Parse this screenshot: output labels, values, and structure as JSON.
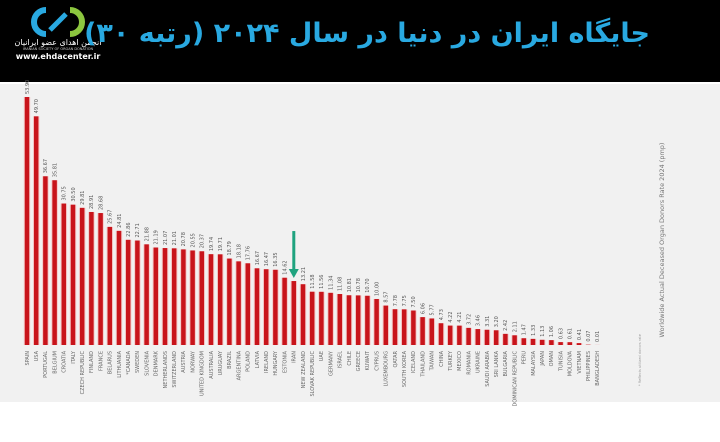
{
  "header": {
    "title": "جایگاه ایران در دنیا در سال ۲۰۲۴ (رتبه ۳۰)",
    "logo_text": "انجمن اهدای عضو ایرانیان",
    "logo_subtext": "IRANIAN SOCIETY OF ORGAN DONATION",
    "logo_url": "www.ehdacenter.ir",
    "title_color": "#29a9e1"
  },
  "chart_data": {
    "type": "bar",
    "ylabel": "Worldwide Actual Deceased Organ Donors Rate 2024 (pmp)",
    "note": "* Reflects utilized donors rate",
    "bar_color": "#c8141b",
    "highlight_arrow_color": "#1fa37f",
    "highlight_category": "IRAN",
    "categories": [
      "SPAIN",
      "USA",
      "PORTUGAL",
      "BELGIUM",
      "CROATIA",
      "ITALY",
      "CZECH REPUBLIC",
      "FINLAND",
      "FRANCE",
      "BELARUS",
      "LITHUANIA",
      "*CANADA",
      "SWEDEN",
      "SLOVENIA",
      "DENMARK",
      "NETHERLANDS",
      "SWITZERLAND",
      "AUSTRIA",
      "NORWAY",
      "UNITED KINGDOM",
      "AUSTRALIA",
      "URUGUAY",
      "BRAZIL",
      "ARGENTINA",
      "POLAND",
      "LATVIA",
      "IRELAND",
      "HUNGARY",
      "ESTONIA",
      "IRAN",
      "NEW ZEALAND",
      "SLOVAK REPUBLIC",
      "UAE",
      "GERMANY",
      "ISRAEL",
      "CHILE",
      "GREECE",
      "KUWAIT",
      "CYPRUS",
      "LUXEMBOURG",
      "QATAR",
      "SOUTH KOREA",
      "ICELAND",
      "THAILAND",
      "TAIWAN",
      "CHINA",
      "TURKEY",
      "MEXICO",
      "ROMANIA",
      "UKRAINE",
      "SAUDI ARABIA",
      "SRI LANKA",
      "BULGARIA",
      "DOMINICAN REPUBLIC",
      "PERU",
      "MALAYSIA",
      "JAPAN",
      "OMAN",
      "TUNISIA",
      "MOLDOVA",
      "VIETNAM",
      "PHILIPPINES",
      "BANGLADESH"
    ],
    "values": [
      53.9,
      49.7,
      36.67,
      35.81,
      30.75,
      30.5,
      29.81,
      28.91,
      28.68,
      25.67,
      24.81,
      22.86,
      22.71,
      21.88,
      21.19,
      21.07,
      21.01,
      20.78,
      20.55,
      20.37,
      19.74,
      19.71,
      18.79,
      18.18,
      17.76,
      16.67,
      16.47,
      16.35,
      14.62,
      13.9,
      13.21,
      11.58,
      11.56,
      11.34,
      11.08,
      10.81,
      10.78,
      10.7,
      10.0,
      8.57,
      7.78,
      7.75,
      7.5,
      6.06,
      5.77,
      4.73,
      4.22,
      4.21,
      3.72,
      3.46,
      3.31,
      3.2,
      2.42,
      2.11,
      1.47,
      1.33,
      1.13,
      1.06,
      0.63,
      0.61,
      0.41,
      0.07,
      0.01
    ],
    "value_labels": [
      "53.90",
      "49.70",
      "36.67",
      "35.81",
      "30.75",
      "30.50",
      "29.81",
      "28.91",
      "28.68",
      "25.67",
      "24.81",
      "22.86",
      "22.71",
      "21.88",
      "21.19",
      "21.07",
      "21.01",
      "20.78",
      "20.55",
      "20.37",
      "19.74",
      "19.71",
      "18.79",
      "18.18",
      "17.76",
      "16.67",
      "16.47",
      "16.35",
      "14.62",
      "",
      "13.21",
      "11.58",
      "11.56",
      "11.34",
      "11.08",
      "10.81",
      "10.78",
      "10.70",
      "10.00",
      "8.57",
      "7.78",
      "7.75",
      "7.50",
      "6.06",
      "5.77",
      "4.73",
      "4.22",
      "4.21",
      "3.72",
      "3.46",
      "3.31",
      "3.20",
      "2.42",
      "2.11",
      "1.47",
      "1.33",
      "1.13",
      "1.06",
      "0.63",
      "0.61",
      "0.41",
      "0.07",
      "0.01"
    ],
    "ylim": [
      0,
      55
    ],
    "grid": false
  }
}
